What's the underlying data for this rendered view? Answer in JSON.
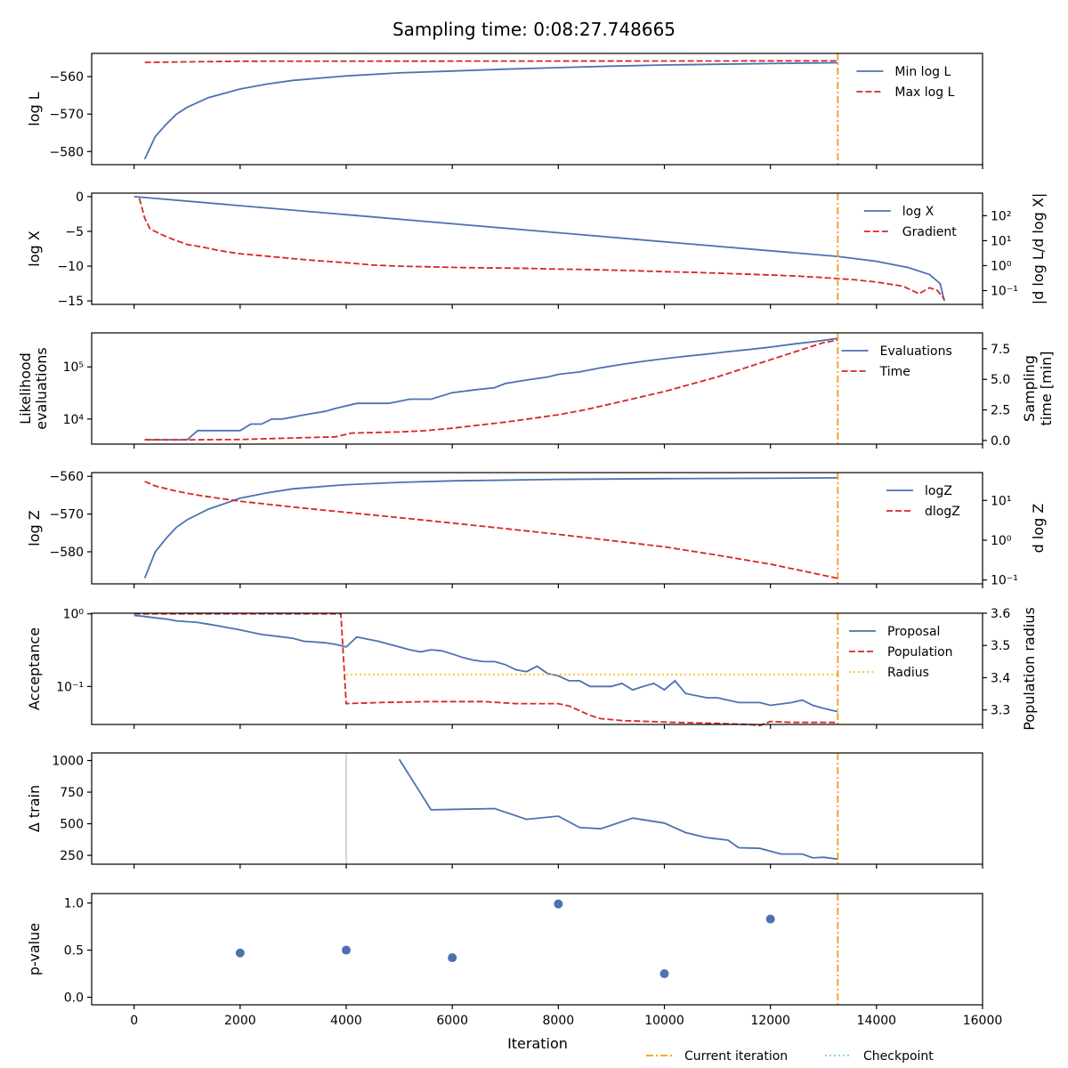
{
  "figure": {
    "title": "Sampling time: 0:08:27.748665",
    "xlabel": "Iteration",
    "current_iteration": 13270,
    "footer_legend": [
      {
        "label": "Current iteration",
        "color": "#f39c12",
        "style": "dashdot"
      },
      {
        "label": "Checkpoint",
        "color": "#7fc8d4",
        "style": "dotted"
      }
    ],
    "colors": {
      "blue": "#4c72b0",
      "red": "#d62728",
      "orange": "#f39c12",
      "yellow": "#f5c518",
      "grey": "#c8c8c8"
    }
  },
  "chart_data": [
    {
      "type": "line",
      "ylabel": "log L",
      "xlim": [
        -800,
        16000
      ],
      "ylim": [
        -583.5,
        -553.8
      ],
      "yticks": [
        -560,
        -570,
        -580
      ],
      "legend": "top-right",
      "series": [
        {
          "name": "Min log L",
          "color": "#4c72b0",
          "style": "solid",
          "x": [
            200,
            400,
            600,
            800,
            1000,
            1400,
            2000,
            2500,
            3000,
            4000,
            5000,
            6000,
            7000,
            8000,
            9000,
            10000,
            11000,
            12000,
            13270
          ],
          "y": [
            -582,
            -576,
            -572.8,
            -570,
            -568.2,
            -565.6,
            -563.3,
            -562,
            -561,
            -559.8,
            -559,
            -558.5,
            -558,
            -557.6,
            -557.2,
            -556.9,
            -556.7,
            -556.5,
            -556.3
          ]
        },
        {
          "name": "Max log L",
          "color": "#d62728",
          "style": "dashed",
          "x": [
            200,
            2000,
            13270
          ],
          "y": [
            -556.2,
            -555.9,
            -555.8
          ]
        }
      ]
    },
    {
      "type": "line",
      "ylabel": "log X",
      "y2label": "|d log L/d log X|",
      "xlim": [
        -800,
        16000
      ],
      "ylim": [
        -15.5,
        0.5
      ],
      "yticks": [
        0,
        -5,
        -10,
        -15
      ],
      "y2scale": "log",
      "y2lim": [
        0.028,
        800
      ],
      "y2ticks": [
        {
          "v": 100,
          "label": "10²"
        },
        {
          "v": 10,
          "label": "10¹"
        },
        {
          "v": 1,
          "label": "10⁰"
        },
        {
          "v": 0.1,
          "label": "10⁻¹"
        }
      ],
      "legend": "top-right",
      "series": [
        {
          "name": "log X",
          "color": "#4c72b0",
          "style": "solid",
          "axis": "left",
          "x": [
            0,
            2000,
            4000,
            6000,
            8000,
            10000,
            12000,
            13270,
            14000,
            14600,
            15000,
            15200,
            15280
          ],
          "y": [
            0,
            -1.3,
            -2.6,
            -3.9,
            -5.2,
            -6.5,
            -7.8,
            -8.6,
            -9.3,
            -10.2,
            -11.2,
            -12.5,
            -15
          ]
        },
        {
          "name": "Gradient",
          "color": "#d62728",
          "style": "dashed",
          "axis": "right",
          "x": [
            100,
            200,
            300,
            500,
            700,
            1000,
            1300,
            1600,
            2000,
            2500,
            3000,
            3500,
            4000,
            4500,
            5000,
            5500,
            6000,
            6500,
            7000,
            7500,
            8000,
            8500,
            9000,
            9500,
            10000,
            10500,
            11000,
            11500,
            12000,
            12500,
            13000,
            13270,
            13600,
            14000,
            14500,
            14800,
            15000,
            15150,
            15280
          ],
          "y": [
            500,
            80,
            30,
            18,
            12,
            7,
            5.5,
            4,
            3,
            2.4,
            1.9,
            1.55,
            1.3,
            1.05,
            0.95,
            0.9,
            0.85,
            0.82,
            0.8,
            0.77,
            0.72,
            0.7,
            0.66,
            0.62,
            0.57,
            0.54,
            0.5,
            0.46,
            0.42,
            0.38,
            0.33,
            0.3,
            0.27,
            0.22,
            0.15,
            0.075,
            0.13,
            0.1,
            0.045
          ]
        }
      ]
    },
    {
      "type": "line",
      "ylabel": "Likelihood evaluations",
      "y2label": "Sampling time [min]",
      "xlim": [
        -800,
        16000
      ],
      "yscale": "log",
      "ylim": [
        3300,
        450000
      ],
      "yticks": [
        {
          "v": 100000,
          "label": "10⁵"
        },
        {
          "v": 10000,
          "label": "10⁴"
        }
      ],
      "y2lim": [
        -0.3,
        8.8
      ],
      "y2ticks": [
        7.5,
        5.0,
        2.5,
        0.0
      ],
      "legend": "top-right",
      "series": [
        {
          "name": "Evaluations",
          "color": "#4c72b0",
          "style": "solid",
          "axis": "left",
          "x": [
            200,
            600,
            1000,
            1200,
            1400,
            1600,
            2000,
            2200,
            2400,
            2600,
            2800,
            3200,
            3600,
            3800,
            4200,
            4800,
            5200,
            5600,
            6000,
            6400,
            6800,
            7000,
            7400,
            7800,
            8000,
            8400,
            8800,
            9200,
            9600,
            10000,
            10400,
            10800,
            11200,
            11600,
            12000,
            12400,
            12800,
            13270
          ],
          "y": [
            4000,
            4000,
            4000,
            6000,
            6000,
            6000,
            6000,
            8000,
            8000,
            10000,
            10000,
            12000,
            14000,
            16000,
            20000,
            20000,
            24000,
            24000,
            32000,
            36000,
            40000,
            48000,
            56000,
            64000,
            72000,
            80000,
            96000,
            112000,
            128000,
            144000,
            160000,
            176000,
            196000,
            216000,
            240000,
            272000,
            304000,
            352000
          ]
        },
        {
          "name": "Time",
          "color": "#d62728",
          "style": "dashed",
          "axis": "right",
          "x": [
            200,
            1000,
            2000,
            3000,
            3800,
            4100,
            5000,
            5500,
            6000,
            6500,
            7000,
            7500,
            8000,
            8500,
            9000,
            9500,
            10000,
            10500,
            11000,
            11500,
            12000,
            12500,
            13000,
            13270
          ],
          "y": [
            0.05,
            0.05,
            0.08,
            0.2,
            0.3,
            0.6,
            0.7,
            0.8,
            1.0,
            1.25,
            1.5,
            1.8,
            2.1,
            2.5,
            3.0,
            3.5,
            4.0,
            4.6,
            5.2,
            5.9,
            6.6,
            7.3,
            8.0,
            8.2
          ]
        }
      ]
    },
    {
      "type": "line",
      "ylabel": "log Z",
      "y2label": "d log Z",
      "xlim": [
        -800,
        16000
      ],
      "ylim": [
        -588.5,
        -559
      ],
      "yticks": [
        -560,
        -570,
        -580
      ],
      "y2scale": "log",
      "y2lim": [
        0.08,
        50
      ],
      "y2ticks": [
        {
          "v": 10,
          "label": "10¹"
        },
        {
          "v": 1,
          "label": "10⁰"
        },
        {
          "v": 0.1,
          "label": "10⁻¹"
        }
      ],
      "legend": "top-right",
      "series": [
        {
          "name": "logZ",
          "color": "#4c72b0",
          "style": "solid",
          "axis": "left",
          "x": [
            200,
            400,
            600,
            800,
            1000,
            1400,
            2000,
            2500,
            3000,
            4000,
            5000,
            6000,
            8000,
            10000,
            12000,
            13270
          ],
          "y": [
            -587,
            -580,
            -576.5,
            -573.5,
            -571.5,
            -568.7,
            -565.8,
            -564.4,
            -563.3,
            -562.2,
            -561.6,
            -561.2,
            -560.8,
            -560.6,
            -560.5,
            -560.4
          ]
        },
        {
          "name": "dlogZ",
          "color": "#d62728",
          "style": "dashed",
          "axis": "right",
          "x": [
            200,
            400,
            800,
            1200,
            2000,
            3000,
            4000,
            5000,
            6000,
            7000,
            8000,
            9000,
            10000,
            11000,
            12000,
            13270
          ],
          "y": [
            30,
            23,
            17,
            13.5,
            9.5,
            6.8,
            5.0,
            3.7,
            2.7,
            1.95,
            1.4,
            0.98,
            0.68,
            0.42,
            0.25,
            0.11
          ]
        }
      ]
    },
    {
      "type": "line",
      "ylabel": "Acceptance",
      "y2label": "Population radius",
      "xlim": [
        -800,
        16000
      ],
      "yscale": "log",
      "ylim": [
        0.03,
        1.02
      ],
      "yticks": [
        {
          "v": 1,
          "label": "10⁰"
        },
        {
          "v": 0.1,
          "label": "10⁻¹"
        }
      ],
      "y2lim": [
        3.255,
        3.6
      ],
      "y2ticks": [
        3.6,
        3.5,
        3.4,
        3.3
      ],
      "legend": "top-right",
      "series": [
        {
          "name": "Proposal",
          "color": "#4c72b0",
          "style": "solid",
          "axis": "left",
          "x": [
            0,
            200,
            400,
            600,
            800,
            1000,
            1200,
            1400,
            1600,
            2000,
            2400,
            2800,
            3000,
            3200,
            3600,
            3800,
            4000,
            4200,
            4600,
            5000,
            5200,
            5400,
            5600,
            5800,
            6000,
            6200,
            6400,
            6600,
            6800,
            7000,
            7200,
            7400,
            7600,
            7800,
            8000,
            8200,
            8400,
            8600,
            8800,
            9000,
            9200,
            9400,
            9600,
            9800,
            10000,
            10200,
            10400,
            10800,
            11000,
            11400,
            11800,
            12000,
            12400,
            12600,
            12800,
            13000,
            13270
          ],
          "y": [
            0.95,
            0.92,
            0.88,
            0.85,
            0.8,
            0.78,
            0.76,
            0.72,
            0.68,
            0.6,
            0.52,
            0.48,
            0.46,
            0.42,
            0.4,
            0.38,
            0.35,
            0.48,
            0.42,
            0.35,
            0.32,
            0.3,
            0.32,
            0.31,
            0.28,
            0.25,
            0.23,
            0.22,
            0.22,
            0.2,
            0.17,
            0.16,
            0.19,
            0.15,
            0.14,
            0.12,
            0.12,
            0.1,
            0.1,
            0.1,
            0.11,
            0.09,
            0.1,
            0.11,
            0.09,
            0.12,
            0.08,
            0.07,
            0.07,
            0.06,
            0.06,
            0.055,
            0.06,
            0.065,
            0.055,
            0.05,
            0.045
          ]
        },
        {
          "name": "Population",
          "color": "#d62728",
          "style": "dashed",
          "axis": "left",
          "x": [
            0,
            3900,
            4000,
            4600,
            5600,
            6600,
            7200,
            8000,
            8200,
            8600,
            8800,
            9200,
            10200,
            11000,
            11600,
            11800,
            12000,
            12400,
            13270
          ],
          "y": [
            1.0,
            1.0,
            0.058,
            0.06,
            0.062,
            0.062,
            0.058,
            0.058,
            0.054,
            0.04,
            0.036,
            0.034,
            0.032,
            0.031,
            0.03,
            0.029,
            0.033,
            0.032,
            0.032
          ]
        },
        {
          "name": "Radius",
          "color": "#f5c518",
          "style": "dotted",
          "axis": "right",
          "x": [
            4000,
            13270
          ],
          "y": [
            3.41,
            3.41
          ]
        }
      ]
    },
    {
      "type": "line",
      "ylabel": "Δ train",
      "xlim": [
        -800,
        16000
      ],
      "ylim": [
        180,
        1060
      ],
      "yticks": [
        1000,
        750,
        500,
        250
      ],
      "vlines": [
        4000
      ],
      "series": [
        {
          "name": "",
          "color": "#4c72b0",
          "style": "solid",
          "x": [
            5000,
            5600,
            6800,
            7400,
            8000,
            8400,
            8800,
            9400,
            10000,
            10400,
            10800,
            11200,
            11400,
            11800,
            12200,
            12600,
            12800,
            13000,
            13270
          ],
          "y": [
            1010,
            610,
            620,
            535,
            560,
            470,
            460,
            545,
            505,
            430,
            390,
            370,
            310,
            305,
            260,
            260,
            230,
            235,
            220
          ]
        }
      ]
    },
    {
      "type": "scatter",
      "ylabel": "p-value",
      "xlim": [
        -800,
        16000
      ],
      "ylim": [
        -0.08,
        1.1
      ],
      "yticks": [
        1.0,
        0.5,
        0.0
      ],
      "xticks": [
        0,
        2000,
        4000,
        6000,
        8000,
        10000,
        12000,
        14000,
        16000
      ],
      "series": [
        {
          "name": "",
          "color": "#4c72b0",
          "x": [
            2000,
            4000,
            6000,
            8000,
            10000,
            12000
          ],
          "y": [
            0.47,
            0.5,
            0.42,
            0.99,
            0.25,
            0.83
          ]
        }
      ]
    }
  ]
}
